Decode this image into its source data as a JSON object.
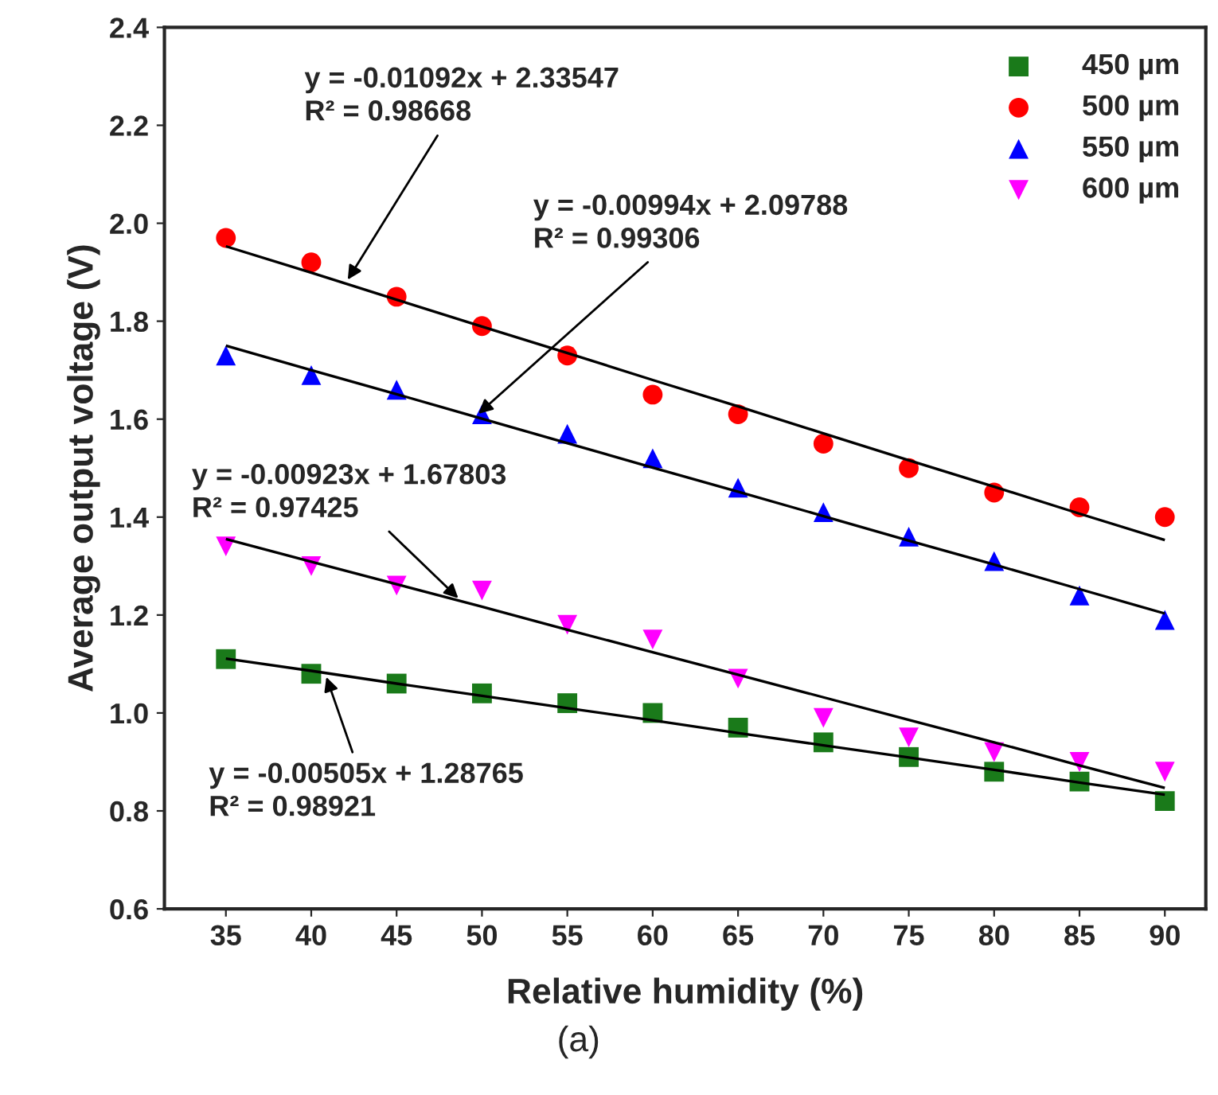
{
  "chart_data": {
    "type": "scatter",
    "xlabel": "Relative humidity (%)",
    "ylabel": "Average output voltage (V)",
    "x": [
      35,
      40,
      45,
      50,
      55,
      60,
      65,
      70,
      75,
      80,
      85,
      90
    ],
    "series": [
      {
        "name": "450 µm",
        "color": "#1a7a1a",
        "marker": "square",
        "values": [
          1.11,
          1.08,
          1.06,
          1.04,
          1.02,
          1.0,
          0.97,
          0.94,
          0.91,
          0.88,
          0.86,
          0.82
        ]
      },
      {
        "name": "500 µm",
        "color": "#ff0000",
        "marker": "circle",
        "values": [
          1.97,
          1.92,
          1.85,
          1.79,
          1.73,
          1.65,
          1.61,
          1.55,
          1.5,
          1.45,
          1.42,
          1.4
        ]
      },
      {
        "name": "550 µm",
        "color": "#0000ff",
        "marker": "triangle",
        "values": [
          1.73,
          1.69,
          1.66,
          1.61,
          1.57,
          1.52,
          1.46,
          1.41,
          1.36,
          1.31,
          1.24,
          1.19
        ]
      },
      {
        "name": "600 µm",
        "color": "#ff00ff",
        "marker": "triangle_down",
        "values": [
          1.34,
          1.3,
          1.26,
          1.25,
          1.18,
          1.15,
          1.07,
          0.99,
          0.95,
          0.92,
          0.9,
          0.88
        ]
      },
      {
        "type": "line",
        "color": "#000000",
        "values": [
          1.953,
          1.899,
          1.844,
          1.789,
          1.735,
          1.68,
          1.626,
          1.571,
          1.516,
          1.462,
          1.407,
          1.353
        ]
      },
      {
        "type": "line",
        "color": "#000000",
        "values": [
          1.75,
          1.7,
          1.651,
          1.601,
          1.551,
          1.501,
          1.452,
          1.402,
          1.352,
          1.303,
          1.253,
          1.203
        ]
      },
      {
        "type": "line",
        "color": "#000000",
        "values": [
          1.355,
          1.309,
          1.263,
          1.217,
          1.17,
          1.124,
          1.078,
          1.032,
          0.986,
          0.94,
          0.893,
          0.847
        ]
      },
      {
        "type": "line",
        "color": "#000000",
        "values": [
          1.111,
          1.086,
          1.06,
          1.035,
          1.01,
          0.985,
          0.959,
          0.934,
          0.909,
          0.884,
          0.858,
          0.833
        ]
      }
    ],
    "annotations": [
      {
        "text": "y = -0.01092x + 2.33547\nR² = 0.98668",
        "x": 42,
        "y": 1.877
      },
      {
        "text": "y = -0.00994x + 2.09788\nR² = 0.99306",
        "x": 49.6,
        "y": 1.605
      },
      {
        "text": "y = -0.00923x + 1.67803\nR² = 0.97425",
        "x": 48.8,
        "y": 1.228
      },
      {
        "text": "y = -0.00505x + 1.28765\nR² = 0.98921",
        "x": 40.8,
        "y": 1.082
      },
      "(a)"
    ],
    "xlim": [
      31.4,
      92.4
    ],
    "xticks": [
      35,
      40,
      45,
      50,
      55,
      60,
      65,
      70,
      75,
      80,
      85,
      90
    ],
    "ylim": [
      0.6,
      2.4
    ],
    "yticks": [
      {
        "value": 0.6,
        "label": "0.6"
      },
      {
        "value": 0.8,
        "label": "0.8"
      },
      {
        "value": 1.0,
        "label": "1.0"
      },
      {
        "value": 1.2,
        "label": "1.2"
      },
      {
        "value": 1.4,
        "label": "1.4"
      },
      {
        "value": 1.6,
        "label": "1.6"
      },
      {
        "value": 1.8,
        "label": "1.8"
      },
      {
        "value": 2.0,
        "label": "2.0"
      },
      {
        "value": 2.2,
        "label": "2.2"
      },
      {
        "value": 2.4,
        "label": "2.4"
      }
    ],
    "legend": "top right",
    "grid": false
  }
}
